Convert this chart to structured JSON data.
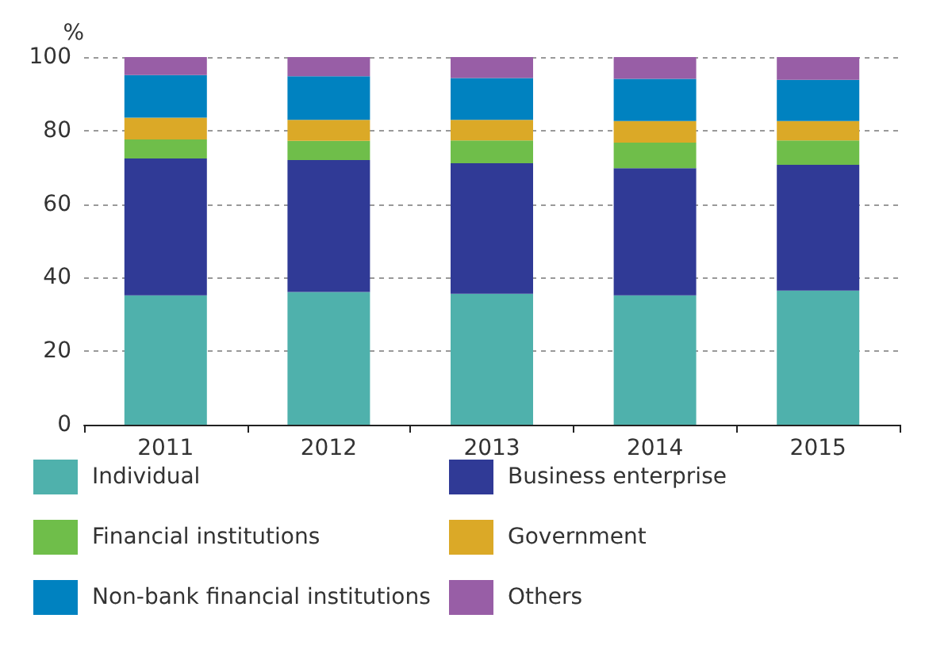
{
  "chart_data": {
    "type": "bar",
    "stacked": true,
    "ylabel": "%",
    "categories": [
      "2011",
      "2012",
      "2013",
      "2014",
      "2015"
    ],
    "series": [
      {
        "name": "Individual",
        "color": "#4fb1ac",
        "values": [
          35.2,
          36.1,
          35.6,
          35.2,
          36.5
        ]
      },
      {
        "name": "Business enterprise",
        "color": "#303a96",
        "values": [
          37.2,
          35.9,
          35.5,
          34.6,
          34.2
        ]
      },
      {
        "name": "Financial institutions",
        "color": "#6fbe4a",
        "values": [
          5.2,
          5.2,
          6.2,
          6.9,
          6.6
        ]
      },
      {
        "name": "Government",
        "color": "#dba927",
        "values": [
          5.9,
          5.7,
          5.6,
          5.9,
          5.3
        ]
      },
      {
        "name": "Non-bank financial institutions",
        "color": "#0082c0",
        "values": [
          11.6,
          11.9,
          11.4,
          11.5,
          11.2
        ]
      },
      {
        "name": "Others",
        "color": "#985ea6",
        "values": [
          4.9,
          5.2,
          5.7,
          5.9,
          6.2
        ]
      }
    ],
    "ylim": [
      0,
      100
    ],
    "yticks": [
      0,
      20,
      40,
      60,
      80,
      100
    ],
    "grid": "y",
    "legend": "bottom"
  }
}
